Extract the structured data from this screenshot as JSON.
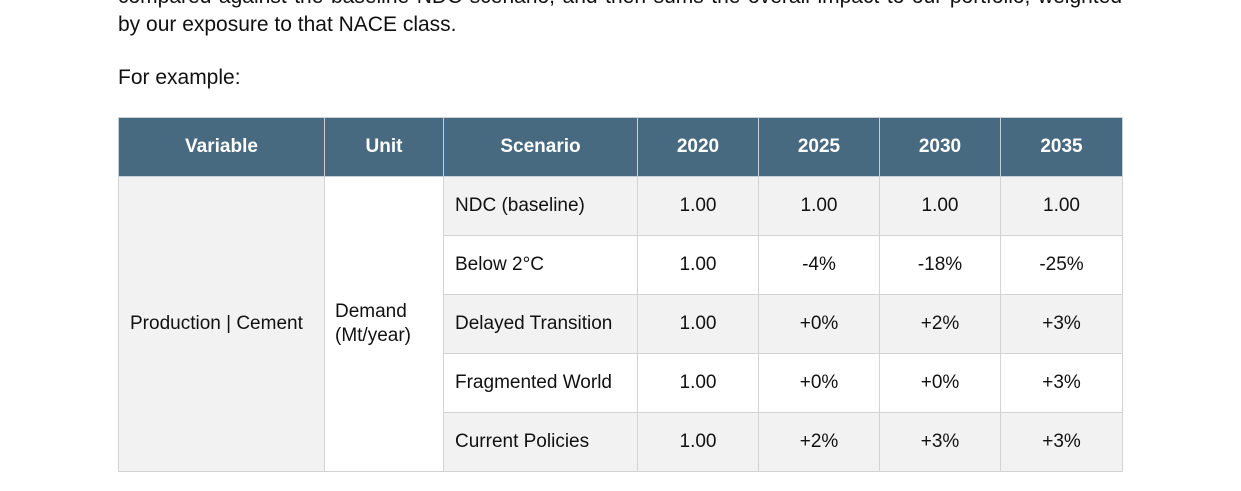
{
  "paragraph": {
    "lines": [
      "compared against the baseline NDC scenario, and then sums the overall impact to our portfolio, weighted",
      "by our exposure to that NACE class."
    ]
  },
  "intro": "For example:",
  "table": {
    "header": [
      "Variable",
      "Unit",
      "Scenario",
      "2020",
      "2025",
      "2030",
      "2035"
    ],
    "variable": "Production | Cement",
    "unit": "Demand (Mt/year)",
    "rows": [
      [
        "NDC (baseline)",
        "1.00",
        "1.00",
        "1.00",
        "1.00"
      ],
      [
        "Below 2°C",
        "1.00",
        "-4%",
        "-18%",
        "-25%"
      ],
      [
        "Delayed Transition",
        "1.00",
        "+0%",
        "+2%",
        "+3%"
      ],
      [
        "Fragmented World",
        "1.00",
        "+0%",
        "+0%",
        "+3%"
      ],
      [
        "Current Policies",
        "1.00",
        "+2%",
        "+3%",
        "+3%"
      ]
    ]
  }
}
